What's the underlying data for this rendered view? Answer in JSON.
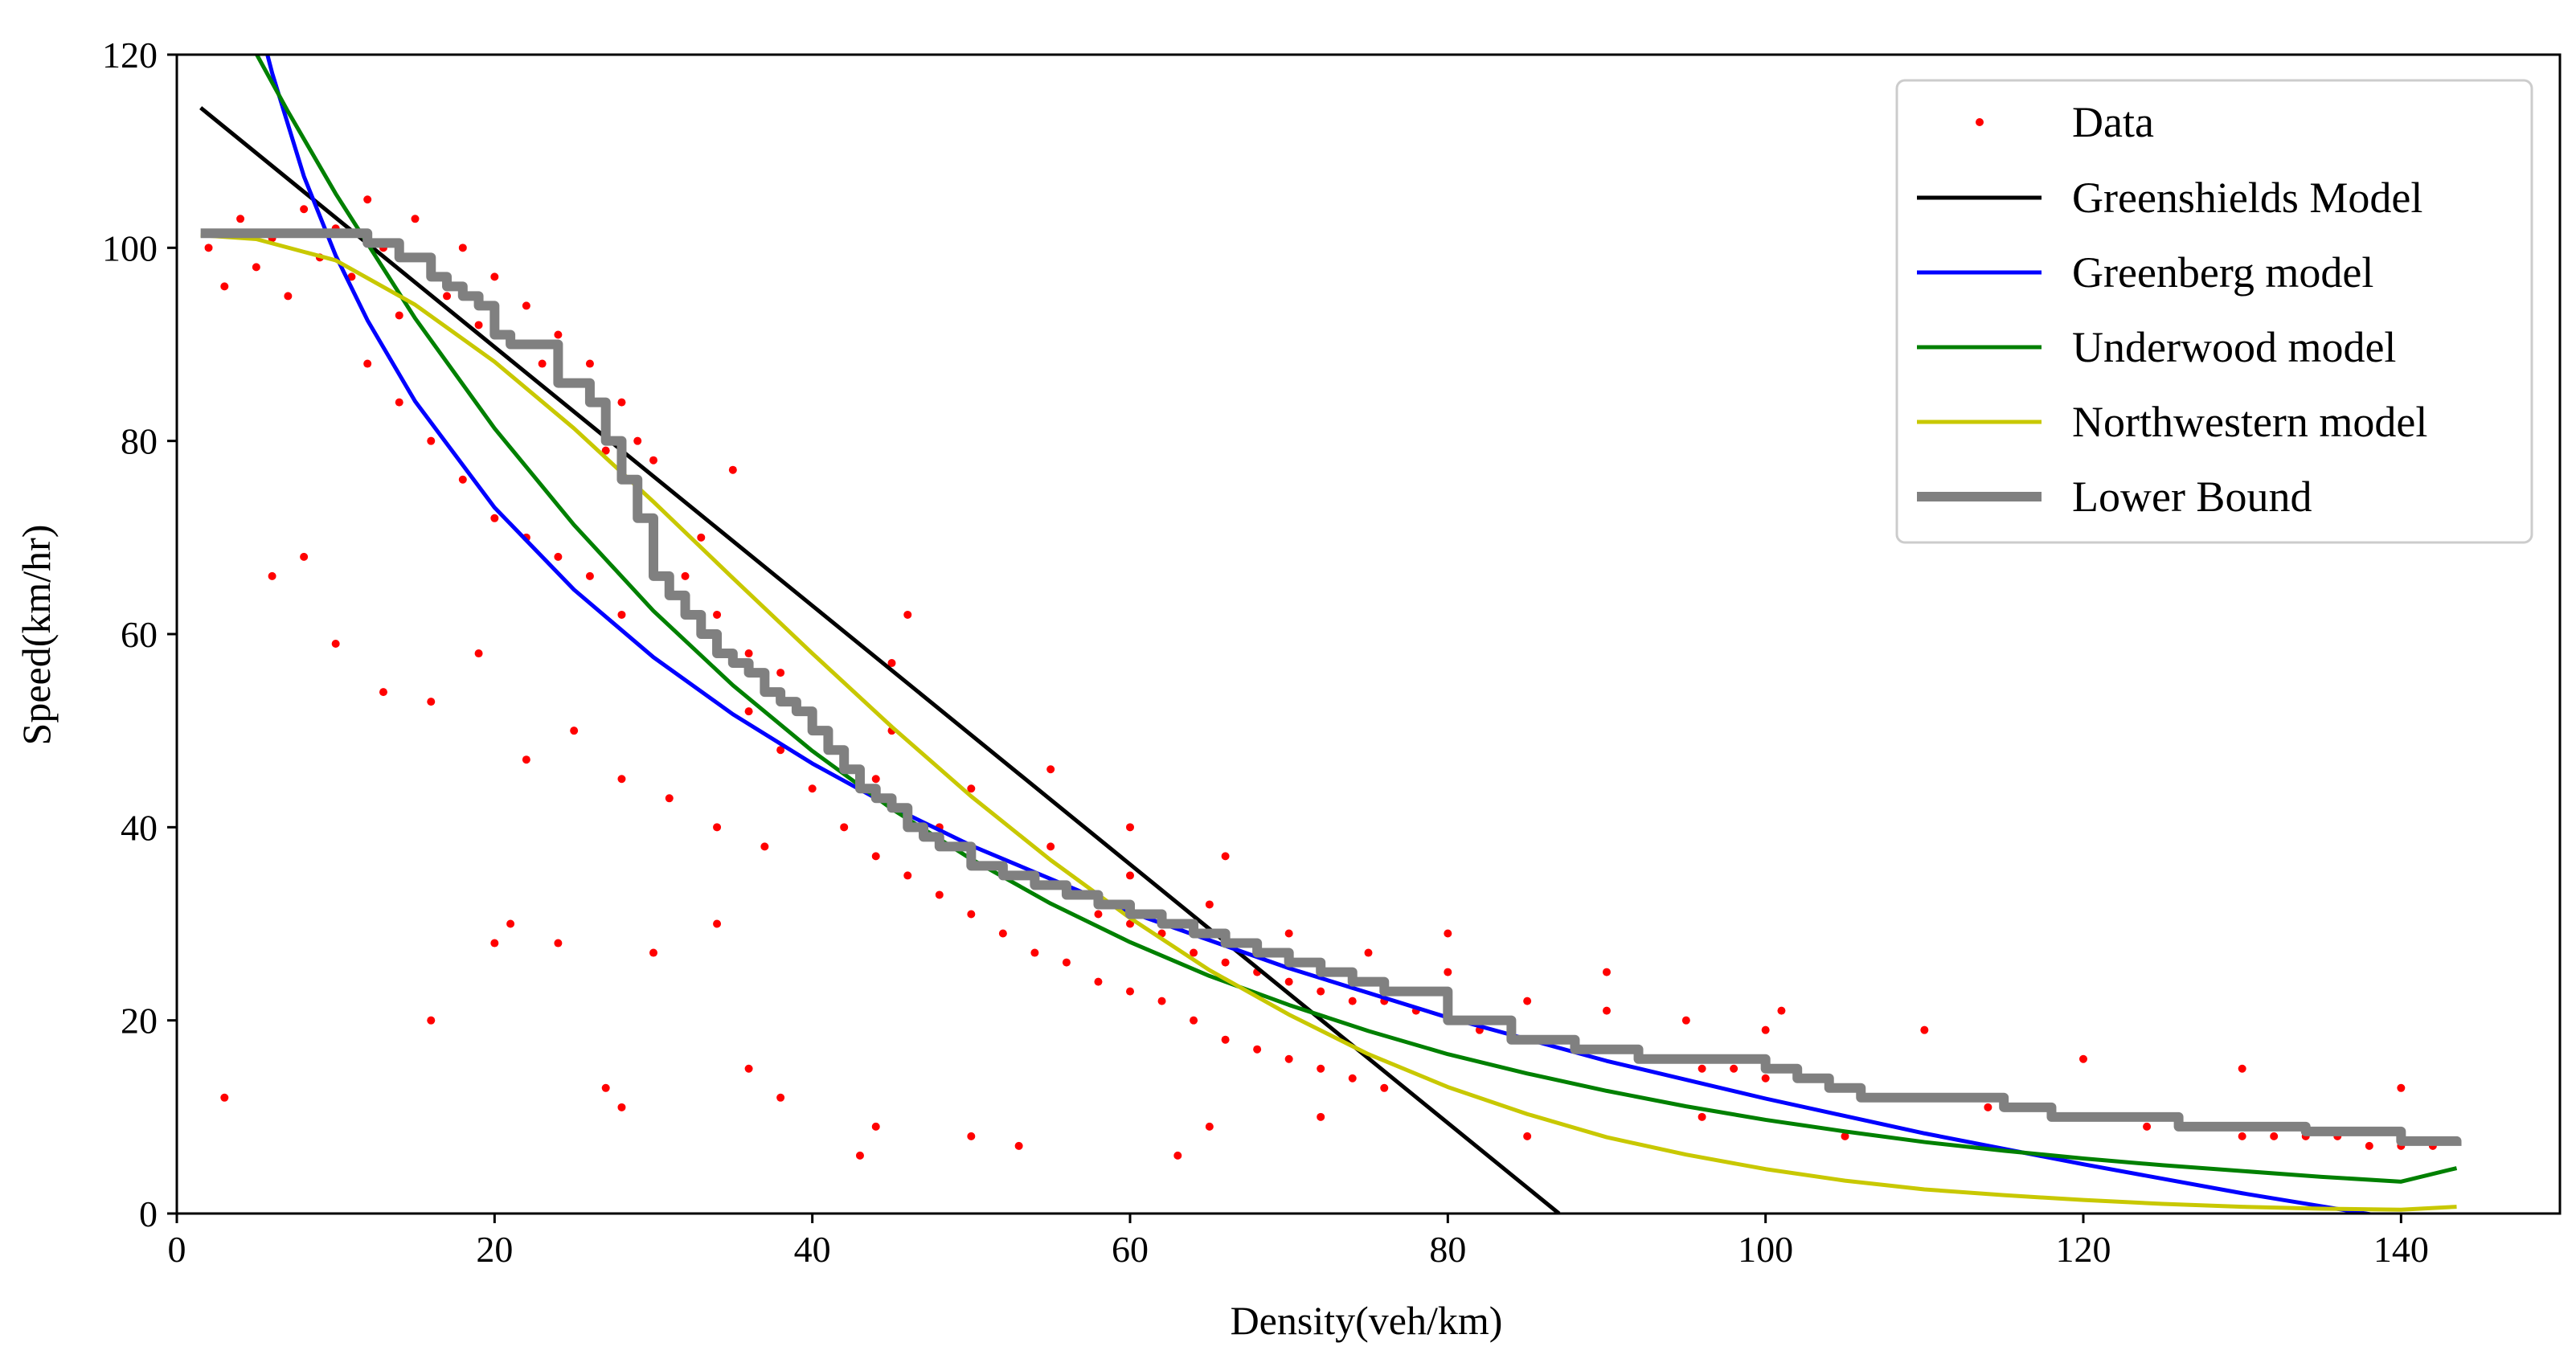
{
  "chart_data": {
    "type": "scatter",
    "title": "",
    "xlabel": "Density(veh/km)",
    "ylabel": "Speed(km/hr)",
    "xlim": [
      0,
      150
    ],
    "ylim": [
      0,
      120
    ],
    "xticks": [
      0,
      20,
      40,
      60,
      80,
      100,
      120,
      140
    ],
    "yticks": [
      0,
      20,
      40,
      60,
      80,
      100,
      120
    ],
    "grid": false,
    "legend_position": "top-right",
    "series": [
      {
        "name": "Data",
        "kind": "scatter",
        "color": "#ff0000",
        "note": "dense cloud of observations; representative points below",
        "points": [
          [
            2,
            100
          ],
          [
            3,
            96
          ],
          [
            4,
            103
          ],
          [
            5,
            98
          ],
          [
            6,
            101
          ],
          [
            7,
            95
          ],
          [
            8,
            104
          ],
          [
            9,
            99
          ],
          [
            10,
            102
          ],
          [
            11,
            97
          ],
          [
            12,
            105
          ],
          [
            13,
            100
          ],
          [
            14,
            93
          ],
          [
            15,
            103
          ],
          [
            16,
            98
          ],
          [
            17,
            95
          ],
          [
            18,
            100
          ],
          [
            19,
            92
          ],
          [
            20,
            97
          ],
          [
            21,
            90
          ],
          [
            22,
            94
          ],
          [
            23,
            88
          ],
          [
            24,
            91
          ],
          [
            25,
            86
          ],
          [
            26,
            88
          ],
          [
            27,
            82
          ],
          [
            28,
            84
          ],
          [
            29,
            80
          ],
          [
            30,
            78
          ],
          [
            12,
            88
          ],
          [
            14,
            84
          ],
          [
            16,
            80
          ],
          [
            18,
            76
          ],
          [
            20,
            72
          ],
          [
            22,
            70
          ],
          [
            24,
            68
          ],
          [
            26,
            66
          ],
          [
            28,
            62
          ],
          [
            30,
            70
          ],
          [
            32,
            66
          ],
          [
            34,
            62
          ],
          [
            36,
            58
          ],
          [
            38,
            56
          ],
          [
            40,
            52
          ],
          [
            42,
            48
          ],
          [
            44,
            45
          ],
          [
            46,
            42
          ],
          [
            48,
            40
          ],
          [
            50,
            38
          ],
          [
            52,
            36
          ],
          [
            54,
            34
          ],
          [
            56,
            33
          ],
          [
            58,
            31
          ],
          [
            60,
            30
          ],
          [
            62,
            29
          ],
          [
            64,
            27
          ],
          [
            66,
            26
          ],
          [
            68,
            25
          ],
          [
            70,
            24
          ],
          [
            72,
            23
          ],
          [
            74,
            22
          ],
          [
            76,
            22
          ],
          [
            78,
            21
          ],
          [
            80,
            20
          ],
          [
            82,
            19
          ],
          [
            84,
            18
          ],
          [
            86,
            18
          ],
          [
            88,
            17
          ],
          [
            90,
            17
          ],
          [
            92,
            16
          ],
          [
            94,
            16
          ],
          [
            96,
            15
          ],
          [
            98,
            15
          ],
          [
            100,
            14
          ],
          [
            102,
            14
          ],
          [
            104,
            13
          ],
          [
            106,
            13
          ],
          [
            108,
            12
          ],
          [
            110,
            12
          ],
          [
            112,
            12
          ],
          [
            114,
            11
          ],
          [
            116,
            11
          ],
          [
            118,
            10
          ],
          [
            120,
            10
          ],
          [
            122,
            10
          ],
          [
            124,
            9
          ],
          [
            126,
            9
          ],
          [
            128,
            9
          ],
          [
            130,
            8
          ],
          [
            132,
            8
          ],
          [
            134,
            8
          ],
          [
            136,
            8
          ],
          [
            138,
            7
          ],
          [
            140,
            7
          ],
          [
            142,
            7
          ],
          [
            36,
            52
          ],
          [
            38,
            48
          ],
          [
            40,
            44
          ],
          [
            42,
            40
          ],
          [
            44,
            37
          ],
          [
            46,
            35
          ],
          [
            48,
            33
          ],
          [
            50,
            31
          ],
          [
            52,
            29
          ],
          [
            54,
            27
          ],
          [
            56,
            26
          ],
          [
            58,
            24
          ],
          [
            60,
            23
          ],
          [
            62,
            22
          ],
          [
            64,
            20
          ],
          [
            66,
            18
          ],
          [
            68,
            17
          ],
          [
            70,
            16
          ],
          [
            72,
            15
          ],
          [
            74,
            14
          ],
          [
            76,
            13
          ],
          [
            45,
            50
          ],
          [
            50,
            44
          ],
          [
            55,
            38
          ],
          [
            60,
            35
          ],
          [
            65,
            32
          ],
          [
            70,
            29
          ],
          [
            75,
            27
          ],
          [
            80,
            25
          ],
          [
            85,
            22
          ],
          [
            90,
            21
          ],
          [
            95,
            20
          ],
          [
            100,
            19
          ],
          [
            3,
            12
          ],
          [
            16,
            20
          ],
          [
            20,
            28
          ],
          [
            21,
            30
          ],
          [
            24,
            28
          ],
          [
            27,
            13
          ],
          [
            28,
            11
          ],
          [
            30,
            27
          ],
          [
            34,
            30
          ],
          [
            36,
            15
          ],
          [
            38,
            12
          ],
          [
            43,
            6
          ],
          [
            44,
            9
          ],
          [
            50,
            8
          ],
          [
            53,
            7
          ],
          [
            63,
            6
          ],
          [
            65,
            9
          ],
          [
            72,
            10
          ],
          [
            85,
            8
          ],
          [
            96,
            10
          ],
          [
            105,
            8
          ],
          [
            6,
            66
          ],
          [
            8,
            68
          ],
          [
            10,
            59
          ],
          [
            13,
            54
          ],
          [
            16,
            53
          ],
          [
            19,
            58
          ],
          [
            22,
            47
          ],
          [
            25,
            50
          ],
          [
            28,
            45
          ],
          [
            31,
            43
          ],
          [
            34,
            40
          ],
          [
            37,
            38
          ],
          [
            45,
            57
          ],
          [
            46,
            62
          ],
          [
            55,
            46
          ],
          [
            60,
            40
          ],
          [
            66,
            37
          ],
          [
            80,
            29
          ],
          [
            90,
            25
          ],
          [
            101,
            21
          ],
          [
            110,
            19
          ],
          [
            120,
            16
          ],
          [
            130,
            15
          ],
          [
            140,
            13
          ],
          [
            35,
            77
          ],
          [
            33,
            70
          ],
          [
            29,
            74
          ],
          [
            27,
            79
          ]
        ]
      },
      {
        "name": "Greenshields Model",
        "kind": "line",
        "color": "#000000",
        "x": [
          1.5,
          87
        ],
        "y": [
          114.5,
          0
        ]
      },
      {
        "name": "Greenberg model",
        "kind": "line",
        "color": "#0000ff",
        "x": [
          5.7,
          6,
          8,
          10,
          12,
          15,
          20,
          25,
          30,
          35,
          40,
          45,
          50,
          60,
          70,
          80,
          90,
          100,
          110,
          120,
          130,
          140,
          143.5
        ],
        "y": [
          120,
          118.1,
          107.4,
          99.2,
          92.5,
          84.1,
          73.1,
          64.6,
          57.6,
          51.7,
          46.6,
          42.1,
          38.1,
          31.2,
          25.4,
          20.3,
          15.8,
          11.9,
          8.3,
          5.1,
          2.1,
          -0.6,
          -1.5
        ]
      },
      {
        "name": "Underwood model",
        "kind": "line",
        "color": "#008000",
        "x": [
          5,
          7,
          10,
          15,
          20,
          25,
          30,
          35,
          40,
          45,
          50,
          55,
          60,
          65,
          70,
          75,
          80,
          85,
          90,
          95,
          100,
          105,
          110,
          115,
          120,
          125,
          130,
          135,
          140,
          143.5
        ],
        "y": [
          120.1,
          114.1,
          105.6,
          92.7,
          81.3,
          71.3,
          62.4,
          54.7,
          47.9,
          41.9,
          36.7,
          32.1,
          28.1,
          24.6,
          21.6,
          18.9,
          16.5,
          14.5,
          12.7,
          11.1,
          9.7,
          8.5,
          7.4,
          6.5,
          5.7,
          5.0,
          4.4,
          3.8,
          3.3,
          4.7
        ]
      },
      {
        "name": "Northwestern model",
        "kind": "line",
        "color": "#c8c800",
        "x": [
          1.5,
          5,
          10,
          15,
          20,
          25,
          30,
          35,
          40,
          45,
          50,
          55,
          60,
          65,
          70,
          75,
          80,
          85,
          90,
          95,
          100,
          105,
          110,
          115,
          120,
          125,
          130,
          135,
          140,
          143.5
        ],
        "y": [
          101.3,
          100.9,
          98.7,
          94.1,
          88.2,
          81.3,
          73.7,
          65.8,
          58.0,
          50.4,
          43.2,
          36.6,
          30.6,
          25.2,
          20.6,
          16.5,
          13.1,
          10.3,
          7.9,
          6.1,
          4.6,
          3.4,
          2.5,
          1.9,
          1.4,
          1.0,
          0.7,
          0.5,
          0.4,
          0.7
        ]
      },
      {
        "name": "Lower Bound",
        "kind": "step",
        "color": "#808080",
        "x": [
          1.5,
          10,
          12,
          14,
          16,
          17,
          18,
          19,
          20,
          21,
          23,
          24,
          25,
          26,
          27,
          28,
          29,
          30,
          31,
          32,
          33,
          34,
          35,
          36,
          37,
          38,
          39,
          40,
          41,
          42,
          43,
          44,
          45,
          46,
          47,
          48,
          50,
          52,
          54,
          56,
          58,
          60,
          62,
          64,
          66,
          68,
          70,
          72,
          74,
          76,
          78,
          80,
          82,
          84,
          86,
          88,
          90,
          92,
          95,
          98,
          100,
          102,
          104,
          106,
          110,
          115,
          118,
          122,
          126,
          130,
          134,
          137,
          140,
          143.5
        ],
        "y": [
          101.5,
          101.5,
          100.5,
          99,
          97,
          96,
          95,
          94,
          91,
          90,
          90,
          86,
          86,
          84,
          80,
          76,
          72,
          66,
          64,
          62,
          60,
          58,
          57,
          56,
          54,
          53,
          52,
          50,
          48,
          46,
          44,
          43,
          42,
          40,
          39,
          38,
          36,
          35,
          34,
          33,
          32,
          31,
          30,
          29,
          28,
          27,
          26,
          25,
          24,
          23,
          23,
          20,
          20,
          18,
          18,
          17,
          17,
          16,
          16,
          16,
          15,
          14,
          13,
          12,
          12,
          11,
          10,
          10,
          9,
          9,
          8.5,
          8.5,
          7.5,
          7
        ]
      }
    ]
  }
}
